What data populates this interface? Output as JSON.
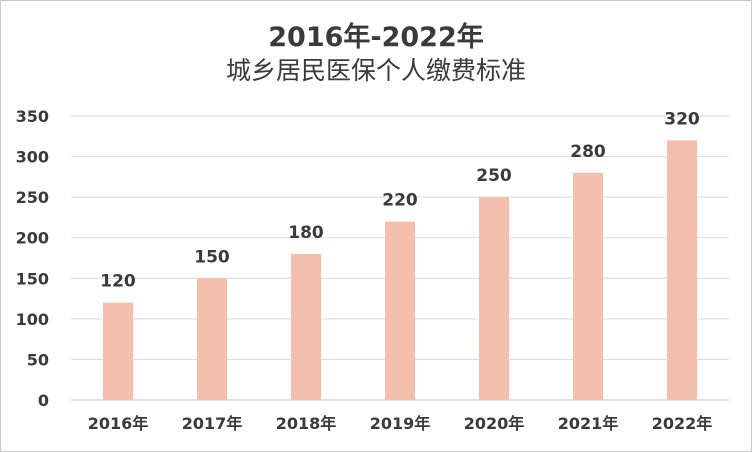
{
  "chart_data": {
    "type": "bar",
    "title": "2016年-2022年",
    "subtitle": "城乡居民医保个人缴费标准",
    "categories": [
      "2016年",
      "2017年",
      "2018年",
      "2019年",
      "2020年",
      "2021年",
      "2022年"
    ],
    "values": [
      120,
      150,
      180,
      220,
      250,
      280,
      320
    ],
    "yticks": [
      "0",
      "50",
      "100",
      "150",
      "200",
      "250",
      "300",
      "350"
    ],
    "ylim": [
      0,
      350
    ],
    "grid": true,
    "bar_color": "#f4c0ad",
    "grid_color": "#d9d9d9"
  }
}
